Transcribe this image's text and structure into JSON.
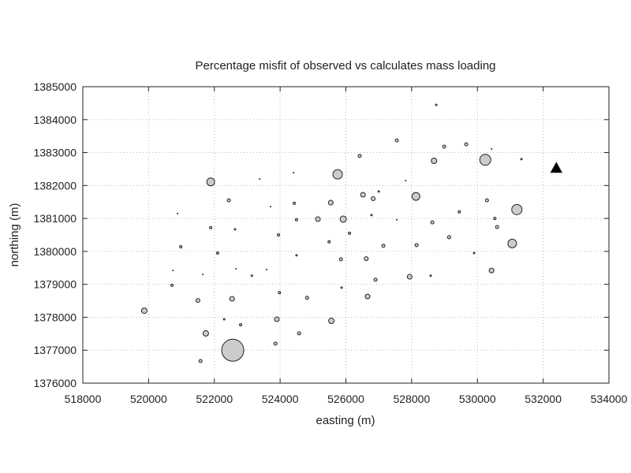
{
  "chart_data": {
    "type": "scatter",
    "title": "Percentage misfit of observed vs calculates mass loading",
    "x_label": "easting (m)",
    "y_label": "northing (m)",
    "xlim": [
      518000,
      534000
    ],
    "ylim": [
      1376000,
      1385000
    ],
    "xticks": [
      518000,
      520000,
      522000,
      524000,
      526000,
      528000,
      530000,
      532000,
      534000
    ],
    "yticks": [
      1376000,
      1377000,
      1378000,
      1379000,
      1380000,
      1381000,
      1382000,
      1383000,
      1384000,
      1385000
    ],
    "grid": true,
    "series": [
      {
        "marker": "circle",
        "color": "#cccccc",
        "x": [
          528750,
          527550,
          528990,
          529660,
          530430,
          526420,
          528680,
          530240,
          531340,
          525750,
          524410,
          523380,
          521890,
          527820,
          527000,
          526520,
          526830,
          528130,
          522440,
          524430,
          525540,
          523710,
          530290,
          531200,
          520880,
          526780,
          524500,
          525150,
          525920,
          527550,
          529450,
          530530,
          528630,
          530600,
          521890,
          522630,
          523950,
          526110,
          529140,
          531060,
          525490,
          520980,
          527140,
          528150,
          522100,
          524500,
          525850,
          526620,
          529900,
          520740,
          522660,
          523590,
          530430,
          523140,
          521650,
          526900,
          527940,
          528580,
          520710,
          525870,
          523980,
          524820,
          522540,
          526660,
          521500,
          519870,
          523900,
          525560,
          522300,
          522800,
          521740,
          524580,
          523860,
          522560,
          521580
        ],
        "y": [
          1384450,
          1383370,
          1383180,
          1383250,
          1383110,
          1382900,
          1382750,
          1382780,
          1382800,
          1382340,
          1382390,
          1382200,
          1382110,
          1382150,
          1381820,
          1381720,
          1381600,
          1381670,
          1381550,
          1381460,
          1381480,
          1381360,
          1381550,
          1381270,
          1381150,
          1381100,
          1380960,
          1380980,
          1380980,
          1380960,
          1381200,
          1381000,
          1380880,
          1380740,
          1380720,
          1380670,
          1380500,
          1380550,
          1380430,
          1380240,
          1380290,
          1380140,
          1380170,
          1380190,
          1379950,
          1379880,
          1379760,
          1379780,
          1379950,
          1379420,
          1379470,
          1379450,
          1379420,
          1379260,
          1379300,
          1379140,
          1379230,
          1379260,
          1378970,
          1378900,
          1378750,
          1378590,
          1378560,
          1378630,
          1378510,
          1378200,
          1377940,
          1377890,
          1377940,
          1377770,
          1377510,
          1377510,
          1377200,
          1377000,
          1376670
        ],
        "sizes": [
          1,
          2,
          2,
          2,
          0.5,
          2,
          3.5,
          7,
          1,
          6,
          0.5,
          0.5,
          5,
          0.5,
          1,
          3,
          2.5,
          5,
          2,
          1.5,
          3,
          0.5,
          2,
          6.5,
          0.5,
          1,
          1.5,
          3,
          4,
          0.5,
          1.5,
          1.5,
          2,
          2,
          1.5,
          1,
          1.5,
          1.5,
          2,
          5.5,
          1.5,
          1.5,
          2,
          2,
          1.5,
          1,
          2,
          2.5,
          1,
          0.5,
          0.5,
          0.5,
          3,
          1,
          0.5,
          2,
          3,
          1,
          1.5,
          1,
          1.5,
          2,
          3,
          3,
          2.5,
          3.5,
          3,
          3.5,
          1,
          1.5,
          3.5,
          2,
          2,
          14,
          2
        ]
      },
      {
        "marker": "triangle",
        "color": "#000000",
        "x": [
          532400
        ],
        "y": [
          1382530
        ],
        "sizes": [
          7
        ]
      }
    ]
  }
}
